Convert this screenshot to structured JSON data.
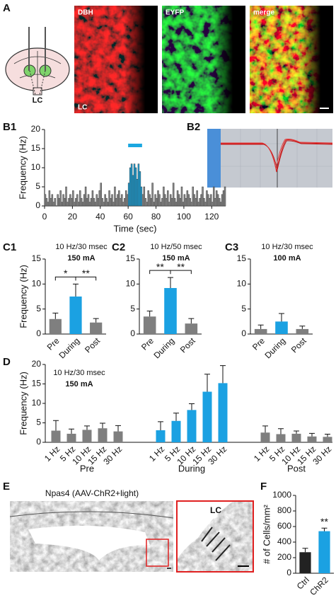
{
  "figure": {
    "panels": [
      "A",
      "B1",
      "B2",
      "C1",
      "C2",
      "C3",
      "D",
      "E",
      "F"
    ],
    "image_labels": {
      "dbh": "DBH",
      "eyfp": "EYFP",
      "merge": "merge",
      "lc_image": "LC",
      "lc_diagram": "LC",
      "e_title": "Npas4 (AAV-ChR2+light)",
      "e_inset": "LC"
    }
  },
  "chart_data": [
    {
      "type": "histogram",
      "x_label": "Time (sec)",
      "y_label": "Frequency (Hz)",
      "bins": [
        0,
        1,
        2,
        3,
        4,
        5,
        6,
        7,
        8,
        9,
        10,
        11,
        12,
        13,
        14,
        15,
        16,
        17,
        18,
        19,
        20,
        21,
        22,
        23,
        24,
        25,
        26,
        27,
        28,
        29,
        30,
        31,
        32,
        33,
        34,
        35,
        36,
        37,
        38,
        39,
        40,
        41,
        42,
        43,
        44,
        45,
        46,
        47,
        48,
        49,
        50,
        51,
        52,
        53,
        54,
        55,
        56,
        57,
        58,
        59,
        60,
        61,
        62,
        63,
        64,
        65,
        66,
        67,
        68,
        69,
        70,
        71,
        72,
        73,
        74,
        75,
        76,
        77,
        78,
        79,
        80,
        81,
        82,
        83,
        84,
        85,
        86,
        87,
        88,
        89,
        90,
        91,
        92,
        93,
        94,
        95,
        96,
        97,
        98,
        99,
        100,
        101,
        102,
        103,
        104,
        105,
        106,
        107,
        108,
        109,
        110,
        111,
        112,
        113,
        114,
        115,
        116,
        117,
        118,
        119,
        120,
        121,
        122,
        123,
        124,
        125,
        126,
        127,
        128,
        129,
        130
      ],
      "values": [
        3,
        2,
        1,
        4,
        2,
        3,
        1,
        2,
        0,
        3,
        2,
        4,
        1,
        3,
        2,
        5,
        1,
        2,
        3,
        2,
        4,
        1,
        2,
        3,
        1,
        4,
        2,
        1,
        3,
        5,
        2,
        3,
        1,
        2,
        4,
        2,
        1,
        3,
        2,
        4,
        6,
        2,
        1,
        3,
        2,
        1,
        4,
        2,
        3,
        1,
        5,
        2,
        3,
        4,
        2,
        3,
        1,
        2,
        4,
        3,
        6,
        10,
        11,
        8,
        11,
        10,
        7,
        11,
        9,
        5,
        3,
        5,
        2,
        1,
        4,
        3,
        2,
        6,
        1,
        3,
        2,
        4,
        3,
        1,
        2,
        5,
        3,
        2,
        4,
        1,
        3,
        2,
        6,
        2,
        1,
        4,
        3,
        2,
        5,
        1,
        3,
        2,
        4,
        3,
        2,
        1,
        5,
        3,
        2,
        4,
        1,
        2,
        3,
        5,
        2,
        1,
        4,
        3,
        2,
        3,
        1,
        5,
        2,
        4,
        3,
        2,
        1,
        3,
        4,
        5
      ],
      "color": "#8c8c8c",
      "stimulus": {
        "start": 60,
        "end": 70,
        "color": "#1ba7e0"
      },
      "xlim": [
        0,
        130
      ],
      "xticks": [
        0,
        20,
        40,
        60,
        80,
        100,
        120
      ],
      "ylim": [
        0,
        20
      ],
      "yticks": [
        0,
        5,
        10,
        15,
        20
      ]
    },
    {
      "type": "bar",
      "title": "10 Hz/30 msec",
      "subtitle": "150 mA",
      "y_label": "Frequency (Hz)",
      "categories": [
        "Pre",
        "During",
        "Post"
      ],
      "values": [
        3,
        7.5,
        2.3
      ],
      "errors": [
        1.2,
        2.5,
        0.8
      ],
      "colors": [
        "#7f7f7f",
        "#1ba1e2",
        "#7f7f7f"
      ],
      "annotations": [
        {
          "text": "*",
          "between": [
            "Pre",
            "During"
          ]
        },
        {
          "text": "**",
          "between": [
            "During",
            "Post"
          ]
        }
      ],
      "ylim": [
        0,
        15
      ],
      "yticks": [
        0,
        5,
        10,
        15
      ]
    },
    {
      "type": "bar",
      "title": "10 Hz/50 msec",
      "subtitle": "150 mA",
      "categories": [
        "Pre",
        "During",
        "Post"
      ],
      "values": [
        3.5,
        9.2,
        2.1
      ],
      "errors": [
        1.1,
        2.1,
        1.0
      ],
      "colors": [
        "#7f7f7f",
        "#1ba1e2",
        "#7f7f7f"
      ],
      "annotations": [
        {
          "text": "**",
          "between": [
            "Pre",
            "During"
          ]
        },
        {
          "text": "**",
          "between": [
            "During",
            "Post"
          ]
        }
      ],
      "ylim": [
        0,
        15
      ],
      "yticks": [
        0,
        5,
        10,
        15
      ]
    },
    {
      "type": "bar",
      "title": "10 Hz/30 msec",
      "subtitle": "100 mA",
      "categories": [
        "Pre",
        "During",
        "Post"
      ],
      "values": [
        1.0,
        2.5,
        1.0
      ],
      "errors": [
        0.8,
        1.6,
        0.6
      ],
      "colors": [
        "#7f7f7f",
        "#1ba1e2",
        "#7f7f7f"
      ],
      "ylim": [
        0,
        15
      ],
      "yticks": [
        0,
        5,
        10,
        15
      ]
    },
    {
      "type": "grouped_bar",
      "title": "10 Hz/30 msec",
      "subtitle": "150 mA",
      "y_label": "Frequency (Hz)",
      "groups": [
        {
          "name": "Pre",
          "color": "#7f7f7f",
          "categories": [
            "1 Hz",
            "5 Hz",
            "10 Hz",
            "15 Hz",
            "30 Hz"
          ],
          "values": [
            3,
            2.2,
            3.2,
            3.6,
            2.8
          ],
          "errors": [
            2.6,
            1.2,
            1.0,
            1.3,
            1.5
          ]
        },
        {
          "name": "During",
          "color": "#1ba1e2",
          "categories": [
            "1 Hz",
            "5 Hz",
            "10 Hz",
            "15 Hz",
            "30 Hz"
          ],
          "values": [
            3.1,
            5.5,
            8.3,
            13,
            15.2
          ],
          "errors": [
            2.2,
            2.0,
            1.6,
            4.5,
            4.5
          ]
        },
        {
          "name": "Post",
          "color": "#7f7f7f",
          "categories": [
            "1 Hz",
            "5 Hz",
            "10 Hz",
            "15 Hz",
            "30 Hz"
          ],
          "values": [
            2.5,
            2.1,
            2.2,
            1.5,
            1.4
          ],
          "errors": [
            1.7,
            1.4,
            0.7,
            0.8,
            0.7
          ]
        }
      ],
      "ylim": [
        0,
        20
      ],
      "yticks": [
        0,
        5,
        10,
        15,
        20
      ]
    },
    {
      "type": "bar",
      "y_label": "# of Cells/mm²",
      "categories": [
        "Ctrl",
        "ChR2"
      ],
      "values": [
        270,
        540
      ],
      "errors": [
        50,
        40
      ],
      "colors": [
        "#222222",
        "#1ba1e2"
      ],
      "annotations": [
        {
          "text": "**",
          "category": "ChR2"
        }
      ],
      "ylim": [
        0,
        1000
      ],
      "yticks": [
        0,
        200,
        400,
        600,
        800,
        1000
      ]
    }
  ]
}
